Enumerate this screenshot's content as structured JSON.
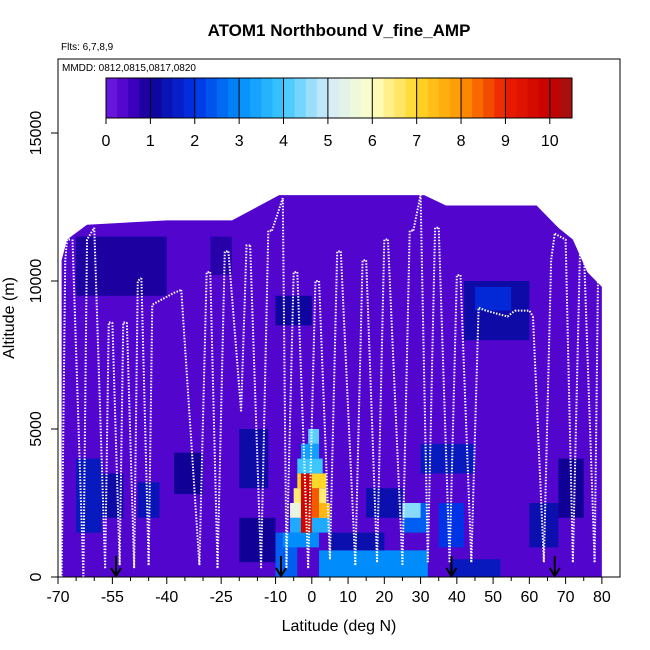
{
  "chart_data": {
    "type": "heatmap",
    "title": "ATOM1 Northbound V_fine_AMP",
    "flights_note": "Flts: 6,7,8,9",
    "dates_note": "MMDD: 0812,0815,0817,0820",
    "xlabel": "Latitude (deg N)",
    "ylabel": "Altitude (m)",
    "xlim": [
      -70,
      85
    ],
    "ylim": [
      0,
      17500
    ],
    "x_ticks": [
      -70,
      -55,
      -40,
      -25,
      -10,
      0,
      10,
      20,
      30,
      40,
      50,
      60,
      70,
      80
    ],
    "x_tick_labels": [
      "-70",
      "-55",
      "-40",
      "-25",
      "-10",
      "0",
      "10",
      "20",
      "30",
      "40",
      "50",
      "60",
      "70",
      "80"
    ],
    "x_minor_ticks": [
      -65,
      -60,
      -50,
      -45,
      -35,
      -30,
      -20,
      -15,
      -5,
      5,
      15,
      25,
      35,
      45,
      55,
      65,
      75
    ],
    "y_ticks": [
      0,
      5000,
      10000,
      15000
    ],
    "y_tick_labels": [
      "0",
      "5000",
      "10000",
      "15000"
    ],
    "colorbar": {
      "min": 0,
      "max": 10.5,
      "ticks": [
        0,
        1,
        2,
        3,
        4,
        5,
        6,
        7,
        8,
        9,
        10
      ],
      "tick_labels": [
        "0",
        "1",
        "2",
        "3",
        "4",
        "5",
        "6",
        "7",
        "8",
        "9",
        "10"
      ]
    },
    "background_value": 0.4,
    "top_profile": [
      [
        -69,
        10700
      ],
      [
        -67.5,
        11400
      ],
      [
        -62,
        11900
      ],
      [
        -40,
        12050
      ],
      [
        -22,
        12050
      ],
      [
        -9,
        12900
      ],
      [
        -1,
        12900
      ],
      [
        31,
        12900
      ],
      [
        37,
        12550
      ],
      [
        62,
        12550
      ],
      [
        68,
        11800
      ],
      [
        72,
        11400
      ],
      [
        76,
        10300
      ],
      [
        80,
        9800
      ]
    ],
    "patches": [
      {
        "x": [
          -65,
          -58
        ],
        "y": [
          1500,
          4000
        ],
        "v": 1.5
      },
      {
        "x": [
          -58,
          -52
        ],
        "y": [
          2000,
          3500
        ],
        "v": 1.2
      },
      {
        "x": [
          -48,
          -42
        ],
        "y": [
          2000,
          3200
        ],
        "v": 1.4
      },
      {
        "x": [
          -38,
          -30
        ],
        "y": [
          2800,
          4200
        ],
        "v": 1.0
      },
      {
        "x": [
          -65,
          -40
        ],
        "y": [
          9500,
          11500
        ],
        "v": 0.9
      },
      {
        "x": [
          -28,
          -22
        ],
        "y": [
          10200,
          11500
        ],
        "v": 0.8
      },
      {
        "x": [
          -20,
          -12
        ],
        "y": [
          3000,
          5000
        ],
        "v": 1.2
      },
      {
        "x": [
          -20,
          -10
        ],
        "y": [
          500,
          2000
        ],
        "v": 1.0
      },
      {
        "x": [
          -10,
          0
        ],
        "y": [
          8500,
          9500
        ],
        "v": 1.1
      },
      {
        "x": [
          -10,
          -4
        ],
        "y": [
          0,
          1500
        ],
        "v": 2.5
      },
      {
        "x": [
          -8,
          2
        ],
        "y": [
          1000,
          1500
        ],
        "v": 3.0
      },
      {
        "x": [
          -6,
          5
        ],
        "y": [
          1500,
          2000
        ],
        "v": 3.5
      },
      {
        "x": [
          -6,
          4
        ],
        "y": [
          2000,
          2500
        ],
        "v": 5.5
      },
      {
        "x": [
          -5,
          4
        ],
        "y": [
          2500,
          3000
        ],
        "v": 6.5
      },
      {
        "x": [
          -4,
          4
        ],
        "y": [
          3000,
          3500
        ],
        "v": 7.0
      },
      {
        "x": [
          -4,
          3
        ],
        "y": [
          3500,
          4000
        ],
        "v": 4.0
      },
      {
        "x": [
          -3,
          2
        ],
        "y": [
          4000,
          4500
        ],
        "v": 3.3
      },
      {
        "x": [
          -1,
          2
        ],
        "y": [
          4500,
          5000
        ],
        "v": 4.2
      },
      {
        "x": [
          -3,
          0
        ],
        "y": [
          1500,
          3500
        ],
        "v": 9.8
      },
      {
        "x": [
          0,
          2
        ],
        "y": [
          2000,
          3000
        ],
        "v": 8.5
      },
      {
        "x": [
          2,
          5
        ],
        "y": [
          2000,
          2500
        ],
        "v": 7.5
      },
      {
        "x": [
          -2,
          0
        ],
        "y": [
          2500,
          3000
        ],
        "v": 10.0
      },
      {
        "x": [
          2,
          32
        ],
        "y": [
          0,
          900
        ],
        "v": 3.0
      },
      {
        "x": [
          5,
          20
        ],
        "y": [
          900,
          1500
        ],
        "v": 1.3
      },
      {
        "x": [
          15,
          25
        ],
        "y": [
          2000,
          3000
        ],
        "v": 1.3
      },
      {
        "x": [
          25,
          32
        ],
        "y": [
          1500,
          2500
        ],
        "v": 2.5
      },
      {
        "x": [
          25,
          30
        ],
        "y": [
          2000,
          2500
        ],
        "v": 4.5
      },
      {
        "x": [
          30,
          45
        ],
        "y": [
          3500,
          4500
        ],
        "v": 1.5
      },
      {
        "x": [
          35,
          42
        ],
        "y": [
          1000,
          2500
        ],
        "v": 2.0
      },
      {
        "x": [
          42,
          60
        ],
        "y": [
          8000,
          10000
        ],
        "v": 1.2
      },
      {
        "x": [
          45,
          55
        ],
        "y": [
          9000,
          9800
        ],
        "v": 1.8
      },
      {
        "x": [
          60,
          68
        ],
        "y": [
          1000,
          2500
        ],
        "v": 1.3
      },
      {
        "x": [
          68,
          75
        ],
        "y": [
          2000,
          4000
        ],
        "v": 1.0
      },
      {
        "x": [
          38,
          52
        ],
        "y": [
          0,
          600
        ],
        "v": 1.5
      }
    ],
    "flight_tracks": [
      [
        [
          -69,
          0
        ],
        [
          -68,
          10700
        ],
        [
          -67.5,
          11400
        ],
        [
          -66.5,
          11400
        ]
      ],
      [
        [
          -66,
          11400
        ],
        [
          -63,
          0
        ]
      ],
      [
        [
          -63,
          0
        ],
        [
          -62,
          11400
        ],
        [
          -60,
          11800
        ]
      ],
      [
        [
          -60,
          11800
        ],
        [
          -57,
          300
        ]
      ],
      [
        [
          -57,
          300
        ],
        [
          -56,
          8600
        ],
        [
          -55,
          8600
        ]
      ],
      [
        [
          -55,
          8600
        ],
        [
          -53,
          400
        ]
      ],
      [
        [
          -53,
          400
        ],
        [
          -52,
          8600
        ],
        [
          -51,
          8600
        ]
      ],
      [
        [
          -51,
          8600
        ],
        [
          -49,
          300
        ]
      ],
      [
        [
          -49,
          300
        ],
        [
          -48,
          10000
        ],
        [
          -47,
          10100
        ]
      ],
      [
        [
          -47,
          10100
        ],
        [
          -45,
          400
        ]
      ],
      [
        [
          -45,
          400
        ],
        [
          -44,
          9200
        ],
        [
          -38,
          9600
        ],
        [
          -36,
          9700
        ]
      ],
      [
        [
          -36,
          9700
        ],
        [
          -31,
          400
        ]
      ],
      [
        [
          -31,
          400
        ],
        [
          -29,
          10300
        ],
        [
          -28,
          10300
        ]
      ],
      [
        [
          -28,
          10300
        ],
        [
          -26,
          300
        ]
      ],
      [
        [
          -26,
          300
        ],
        [
          -24,
          11000
        ],
        [
          -23,
          11000
        ]
      ],
      [
        [
          -23,
          11000
        ],
        [
          -19.5,
          5600
        ]
      ],
      [
        [
          -19.5,
          5600
        ],
        [
          -18,
          11200
        ],
        [
          -17,
          11200
        ]
      ],
      [
        [
          -17,
          11200
        ],
        [
          -14,
          300
        ]
      ],
      [
        [
          -14,
          300
        ],
        [
          -12,
          11700
        ],
        [
          -11,
          11700
        ]
      ],
      [
        [
          -11,
          11700
        ],
        [
          -8,
          12800
        ],
        [
          -7,
          300
        ]
      ],
      [
        [
          -7,
          300
        ],
        [
          -5,
          10300
        ],
        [
          -4,
          10300
        ]
      ],
      [
        [
          -4,
          10300
        ],
        [
          -1,
          300
        ]
      ],
      [
        [
          -1,
          300
        ],
        [
          1,
          10000
        ],
        [
          2,
          10000
        ]
      ],
      [
        [
          2,
          10000
        ],
        [
          5,
          600
        ]
      ],
      [
        [
          5,
          600
        ],
        [
          7,
          11000
        ],
        [
          8,
          11000
        ]
      ],
      [
        [
          8,
          11000
        ],
        [
          12,
          400
        ]
      ],
      [
        [
          12,
          400
        ],
        [
          14,
          10700
        ],
        [
          15,
          10700
        ]
      ],
      [
        [
          15,
          10700
        ],
        [
          18,
          500
        ]
      ],
      [
        [
          18,
          500
        ],
        [
          20,
          11400
        ],
        [
          21,
          11400
        ]
      ],
      [
        [
          21,
          11400
        ],
        [
          25,
          400
        ]
      ],
      [
        [
          25,
          400
        ],
        [
          27,
          11700
        ],
        [
          28,
          11700
        ]
      ],
      [
        [
          28,
          11700
        ],
        [
          30,
          12900
        ],
        [
          32,
          500
        ]
      ],
      [
        [
          32,
          500
        ],
        [
          34,
          11800
        ],
        [
          35,
          11800
        ]
      ],
      [
        [
          35,
          11800
        ],
        [
          38,
          500
        ]
      ],
      [
        [
          38,
          500
        ],
        [
          40,
          10200
        ],
        [
          41,
          10200
        ]
      ],
      [
        [
          41,
          10200
        ],
        [
          44,
          500
        ]
      ],
      [
        [
          44,
          500
        ],
        [
          46,
          9100
        ],
        [
          48,
          9000
        ],
        [
          54,
          8800
        ],
        [
          56,
          9000
        ]
      ],
      [
        [
          56,
          9000
        ],
        [
          60,
          9000
        ],
        [
          61,
          8800
        ]
      ],
      [
        [
          61,
          8800
        ],
        [
          64,
          500
        ]
      ],
      [
        [
          64,
          500
        ],
        [
          66,
          10700
        ],
        [
          67,
          11600
        ]
      ],
      [
        [
          67,
          11600
        ],
        [
          70,
          11400
        ],
        [
          72,
          500
        ]
      ],
      [
        [
          72,
          500
        ],
        [
          74,
          11200
        ],
        [
          75,
          11200
        ]
      ],
      [
        [
          75,
          11200
        ],
        [
          78,
          500
        ]
      ],
      [
        [
          78,
          500
        ],
        [
          79,
          10800
        ],
        [
          80,
          10800
        ]
      ]
    ],
    "arrows_lat": [
      -54,
      -8.5,
      38.5,
      67
    ]
  }
}
